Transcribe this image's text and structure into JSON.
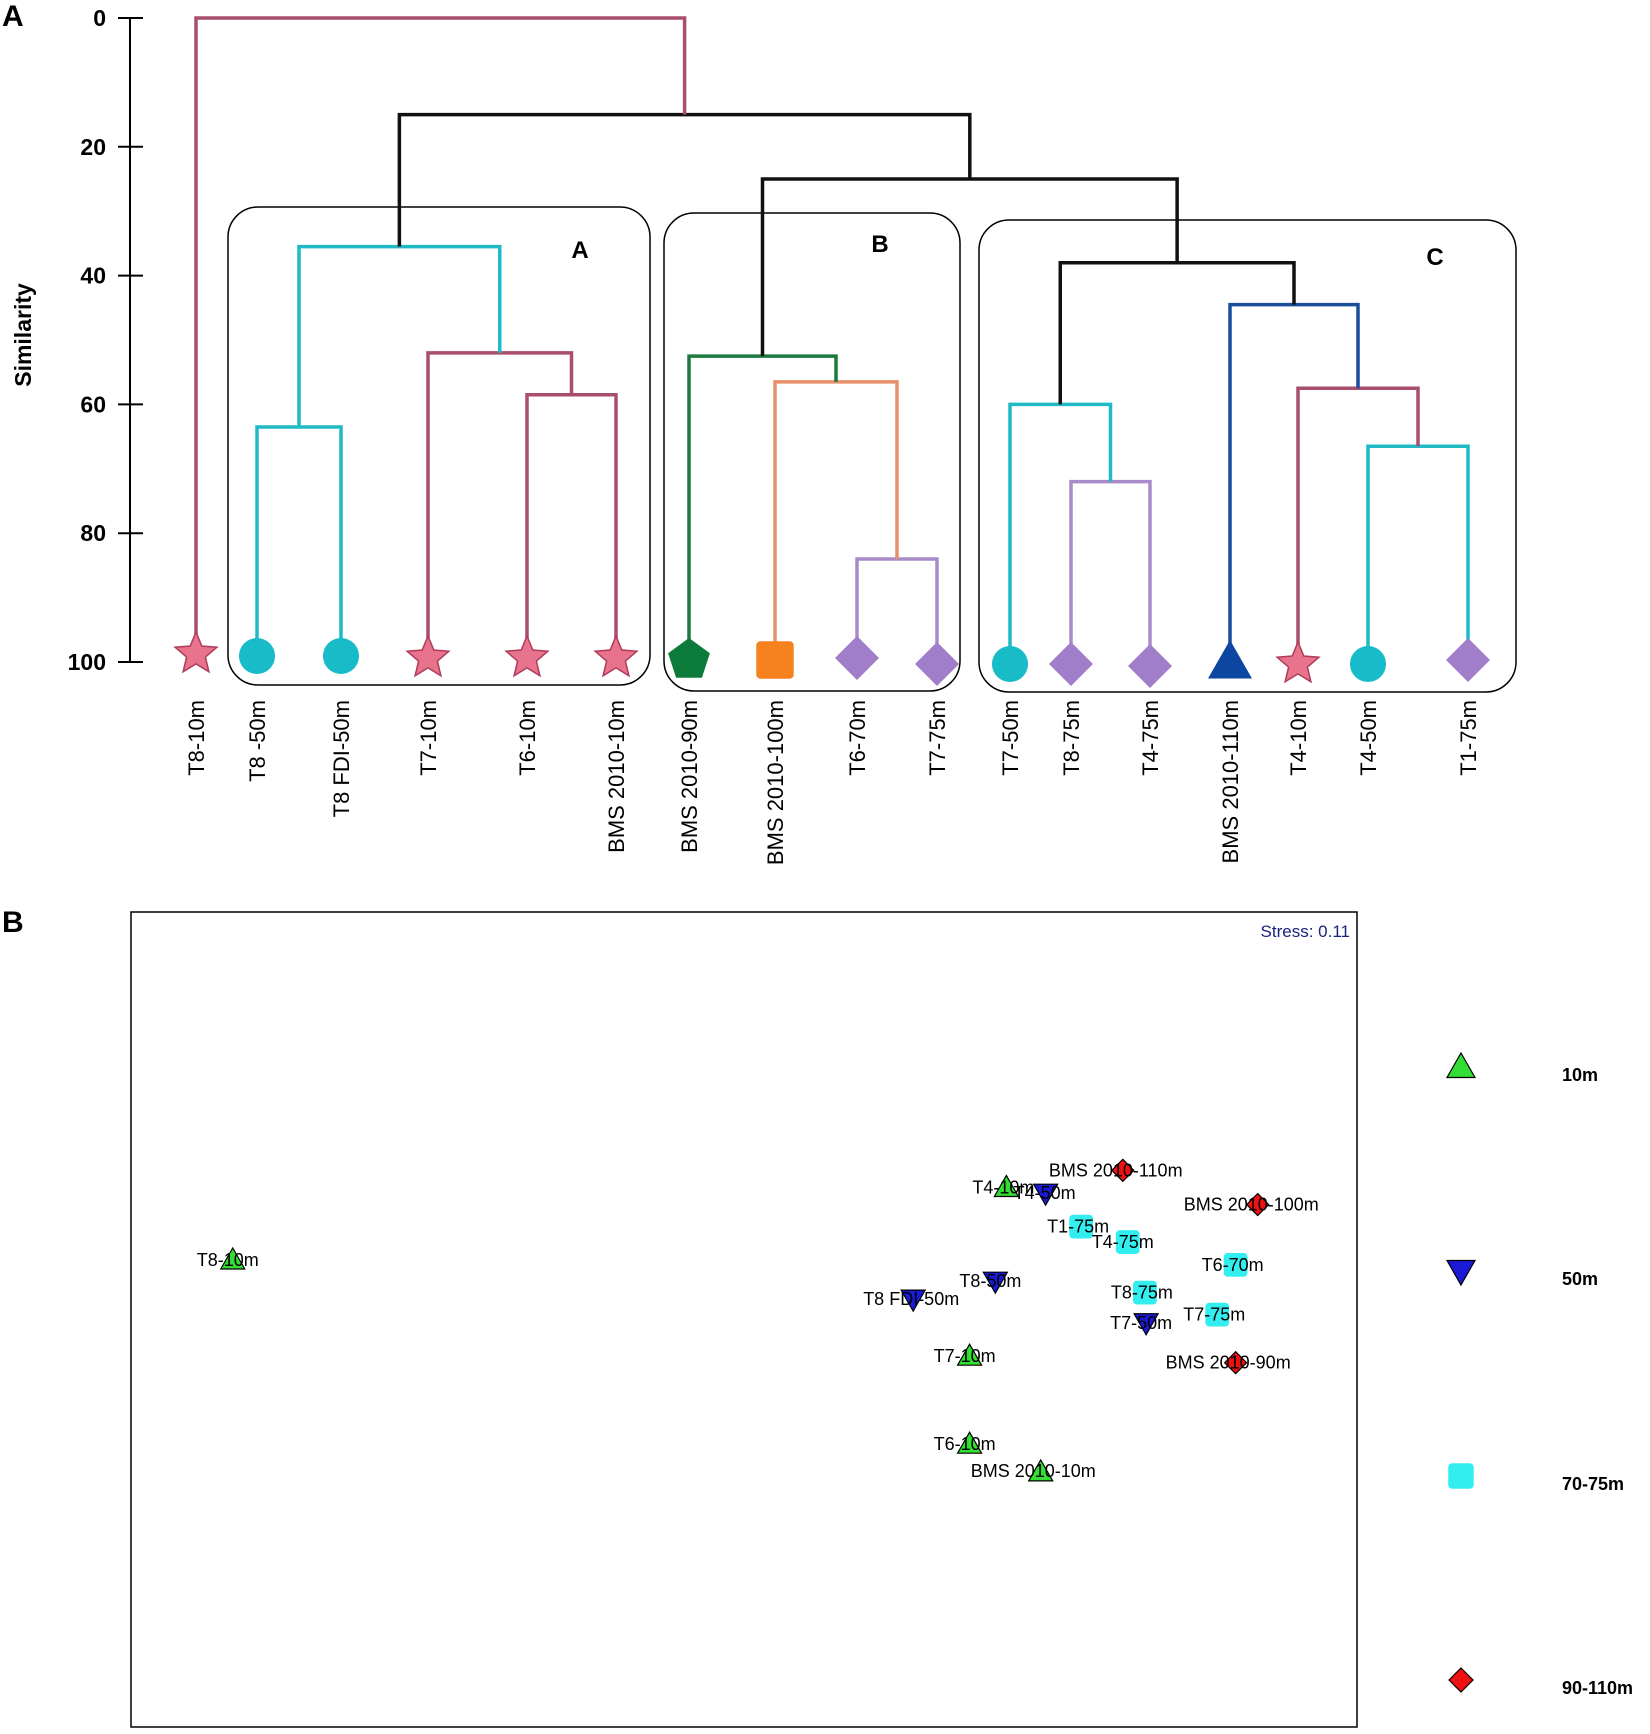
{
  "panel_a_label": "A",
  "panel_b_label": "B",
  "chart_data": [
    {
      "type": "dendrogram",
      "ylabel": "Similarity",
      "ylim": [
        0,
        100
      ],
      "yticks": [
        0,
        20,
        40,
        60,
        80,
        100
      ],
      "leaves": [
        {
          "label": "T8-10m",
          "shape": "star",
          "color": "#e8738d"
        },
        {
          "label": "T8 -50m",
          "shape": "circle",
          "color": "#17bcc8"
        },
        {
          "label": "T8 FDI-50m",
          "shape": "circle",
          "color": "#17bcc8"
        },
        {
          "label": "T7-10m",
          "shape": "star",
          "color": "#e8738d"
        },
        {
          "label": "T6-10m",
          "shape": "star",
          "color": "#e8738d"
        },
        {
          "label": "BMS 2010-10m",
          "shape": "star",
          "color": "#e8738d"
        },
        {
          "label": "BMS 2010-90m",
          "shape": "pentagon",
          "color": "#0b7a3b"
        },
        {
          "label": "BMS 2010-100m",
          "shape": "square",
          "color": "#f5821f"
        },
        {
          "label": "T6-70m",
          "shape": "diamond",
          "color": "#a17ec9"
        },
        {
          "label": "T7-75m",
          "shape": "diamond",
          "color": "#a17ec9"
        },
        {
          "label": "T7-50m",
          "shape": "circle",
          "color": "#17bcc8"
        },
        {
          "label": "T8-75m",
          "shape": "diamond",
          "color": "#a17ec9"
        },
        {
          "label": "T4-75m",
          "shape": "diamond",
          "color": "#a17ec9"
        },
        {
          "label": "BMS 2010-110m",
          "shape": "triangle",
          "color": "#0d47a1"
        },
        {
          "label": "T4-10m",
          "shape": "star",
          "color": "#e8738d"
        },
        {
          "label": "T4-50m",
          "shape": "circle",
          "color": "#17bcc8"
        },
        {
          "label": "T1-75m",
          "shape": "diamond",
          "color": "#a17ec9"
        }
      ],
      "merges": [
        {
          "left": 1,
          "right": 2,
          "similarity": 63.5,
          "color": "#1fbac5"
        },
        {
          "left": 4,
          "right": 5,
          "similarity": 58.5,
          "color": "#a94e6b"
        },
        {
          "left": 3,
          "right": "m1",
          "similarity": 52,
          "color": "#a94e6b"
        },
        {
          "left": "m0",
          "right": "m2",
          "similarity": 35.5,
          "color": "#1fbac5"
        },
        {
          "left": 8,
          "right": 9,
          "similarity": 84,
          "color": "#a98bc9"
        },
        {
          "left": 7,
          "right": "m4",
          "similarity": 56.5,
          "color": "#e8906a"
        },
        {
          "left": 6,
          "right": "m5",
          "similarity": 52.5,
          "color": "#1b7a3e"
        },
        {
          "left": 11,
          "right": 12,
          "similarity": 72,
          "color": "#a98bc9"
        },
        {
          "left": 10,
          "right": "m7",
          "similarity": 60,
          "color": "#1fbac5"
        },
        {
          "left": 15,
          "right": 16,
          "similarity": 66.5,
          "color": "#1fbac5"
        },
        {
          "left": 14,
          "right": "m9",
          "similarity": 57.5,
          "color": "#a94e6b"
        },
        {
          "left": 13,
          "right": "m10",
          "similarity": 44.5,
          "color": "#1a4d9c"
        },
        {
          "left": "m8",
          "right": "m11",
          "similarity": 38,
          "color": "#111111"
        },
        {
          "left": "m6",
          "right": "m12",
          "similarity": 25,
          "color": "#111111"
        },
        {
          "left": "m3",
          "right": "m13",
          "similarity": 15,
          "color": "#111111"
        },
        {
          "left": 0,
          "right": "m14",
          "similarity": 0,
          "color": "#a94e6b"
        }
      ],
      "clusters": [
        {
          "label": "A",
          "leaves": [
            1,
            5
          ]
        },
        {
          "label": "B",
          "leaves": [
            6,
            9
          ]
        },
        {
          "label": "C",
          "leaves": [
            10,
            16
          ]
        }
      ]
    },
    {
      "type": "scatter",
      "stress_label": "Stress: 0.11",
      "xlim": [
        0,
        100
      ],
      "ylim": [
        0,
        100
      ],
      "legend": [
        {
          "label": "10m",
          "shape": "triangle-up",
          "color": "#33dd33"
        },
        {
          "label": "50m",
          "shape": "triangle-down",
          "color": "#1a1ad6"
        },
        {
          "label": "70-75m",
          "shape": "square",
          "color": "#33eeee"
        },
        {
          "label": "90-110m",
          "shape": "diamond",
          "color": "#ee1111"
        }
      ],
      "points": [
        {
          "label": "T8-10m",
          "group": "10m",
          "x": 8.3,
          "y": 57.3
        },
        {
          "label": "T4-10m",
          "group": "10m",
          "x": 71.4,
          "y": 66.2
        },
        {
          "label": "T7-10m",
          "group": "10m",
          "x": 68.4,
          "y": 45.5
        },
        {
          "label": "T6-10m",
          "group": "10m",
          "x": 68.4,
          "y": 34.7
        },
        {
          "label": "BMS 2010-10m",
          "group": "10m",
          "x": 74.2,
          "y": 31.3
        },
        {
          "label": "T4-50m",
          "group": "50m",
          "x": 74.6,
          "y": 65.5
        },
        {
          "label": "T8-50m",
          "group": "50m",
          "x": 70.5,
          "y": 54.7
        },
        {
          "label": "T8 FDI-50m",
          "group": "50m",
          "x": 63.8,
          "y": 52.5
        },
        {
          "label": "T7-50m",
          "group": "50m",
          "x": 82.8,
          "y": 49.6
        },
        {
          "label": "T1-75m",
          "group": "70-75m",
          "x": 77.5,
          "y": 61.4
        },
        {
          "label": "T4-75m",
          "group": "70-75m",
          "x": 81.3,
          "y": 59.5
        },
        {
          "label": "T6-70m",
          "group": "70-75m",
          "x": 90.1,
          "y": 56.7
        },
        {
          "label": "T8-75m",
          "group": "70-75m",
          "x": 82.7,
          "y": 53.3
        },
        {
          "label": "T7-75m",
          "group": "70-75m",
          "x": 88.6,
          "y": 50.6
        },
        {
          "label": "BMS 2010-110m",
          "group": "90-110m",
          "x": 80.9,
          "y": 68.3
        },
        {
          "label": "BMS 2010-100m",
          "group": "90-110m",
          "x": 91.9,
          "y": 64.1
        },
        {
          "label": "BMS 2010-90m",
          "group": "90-110m",
          "x": 90.1,
          "y": 44.7
        }
      ]
    }
  ]
}
